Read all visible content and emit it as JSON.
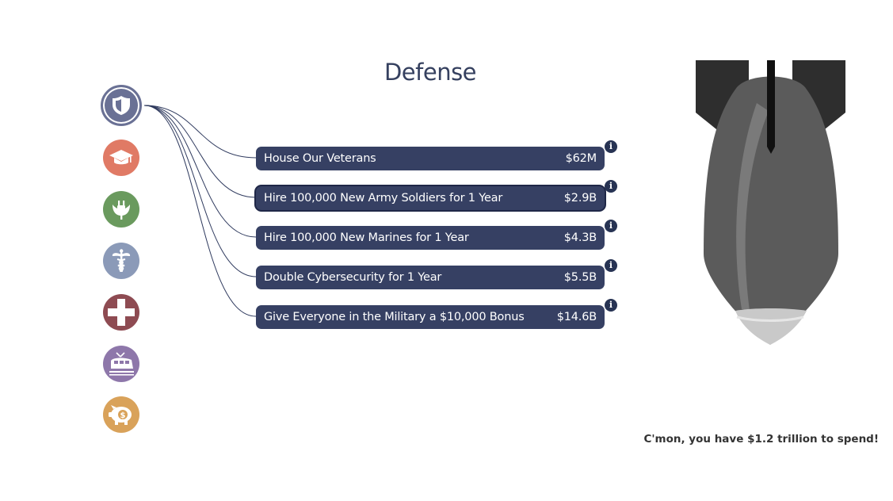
{
  "title": "Defense",
  "categories": [
    {
      "name": "defense",
      "icon": "shield-icon",
      "color": "#6a7195",
      "active": true
    },
    {
      "name": "education",
      "icon": "graduation-cap-icon",
      "color": "#e07a65"
    },
    {
      "name": "energy",
      "icon": "plug-leaf-icon",
      "color": "#6a9a5e"
    },
    {
      "name": "health",
      "icon": "caduceus-icon",
      "color": "#8b9ab8"
    },
    {
      "name": "emergency",
      "icon": "medical-cross-icon",
      "color": "#8e4b52"
    },
    {
      "name": "transportation",
      "icon": "train-icon",
      "color": "#8e77aa"
    },
    {
      "name": "savings",
      "icon": "piggy-bank-icon",
      "color": "#d9a25a"
    }
  ],
  "items": [
    {
      "label": "House Our Veterans",
      "amount": "$62M"
    },
    {
      "label": "Hire 100,000 New Army Soldiers for 1 Year",
      "amount": "$2.9B"
    },
    {
      "label": "Hire 100,000 New Marines for 1 Year",
      "amount": "$4.3B"
    },
    {
      "label": "Double Cybersecurity for 1 Year",
      "amount": "$5.5B"
    },
    {
      "label": "Give Everyone in the Military a $10,000 Bonus",
      "amount": "$14.6B"
    }
  ],
  "info_glyph": "i",
  "footer_message": "C'mon, you have $1.2 trillion to spend!",
  "colors": {
    "row_bg": "#364063",
    "title": "#35405f",
    "bomb_body": "#5b5b5b",
    "bomb_fins": "#2e2e2e"
  }
}
